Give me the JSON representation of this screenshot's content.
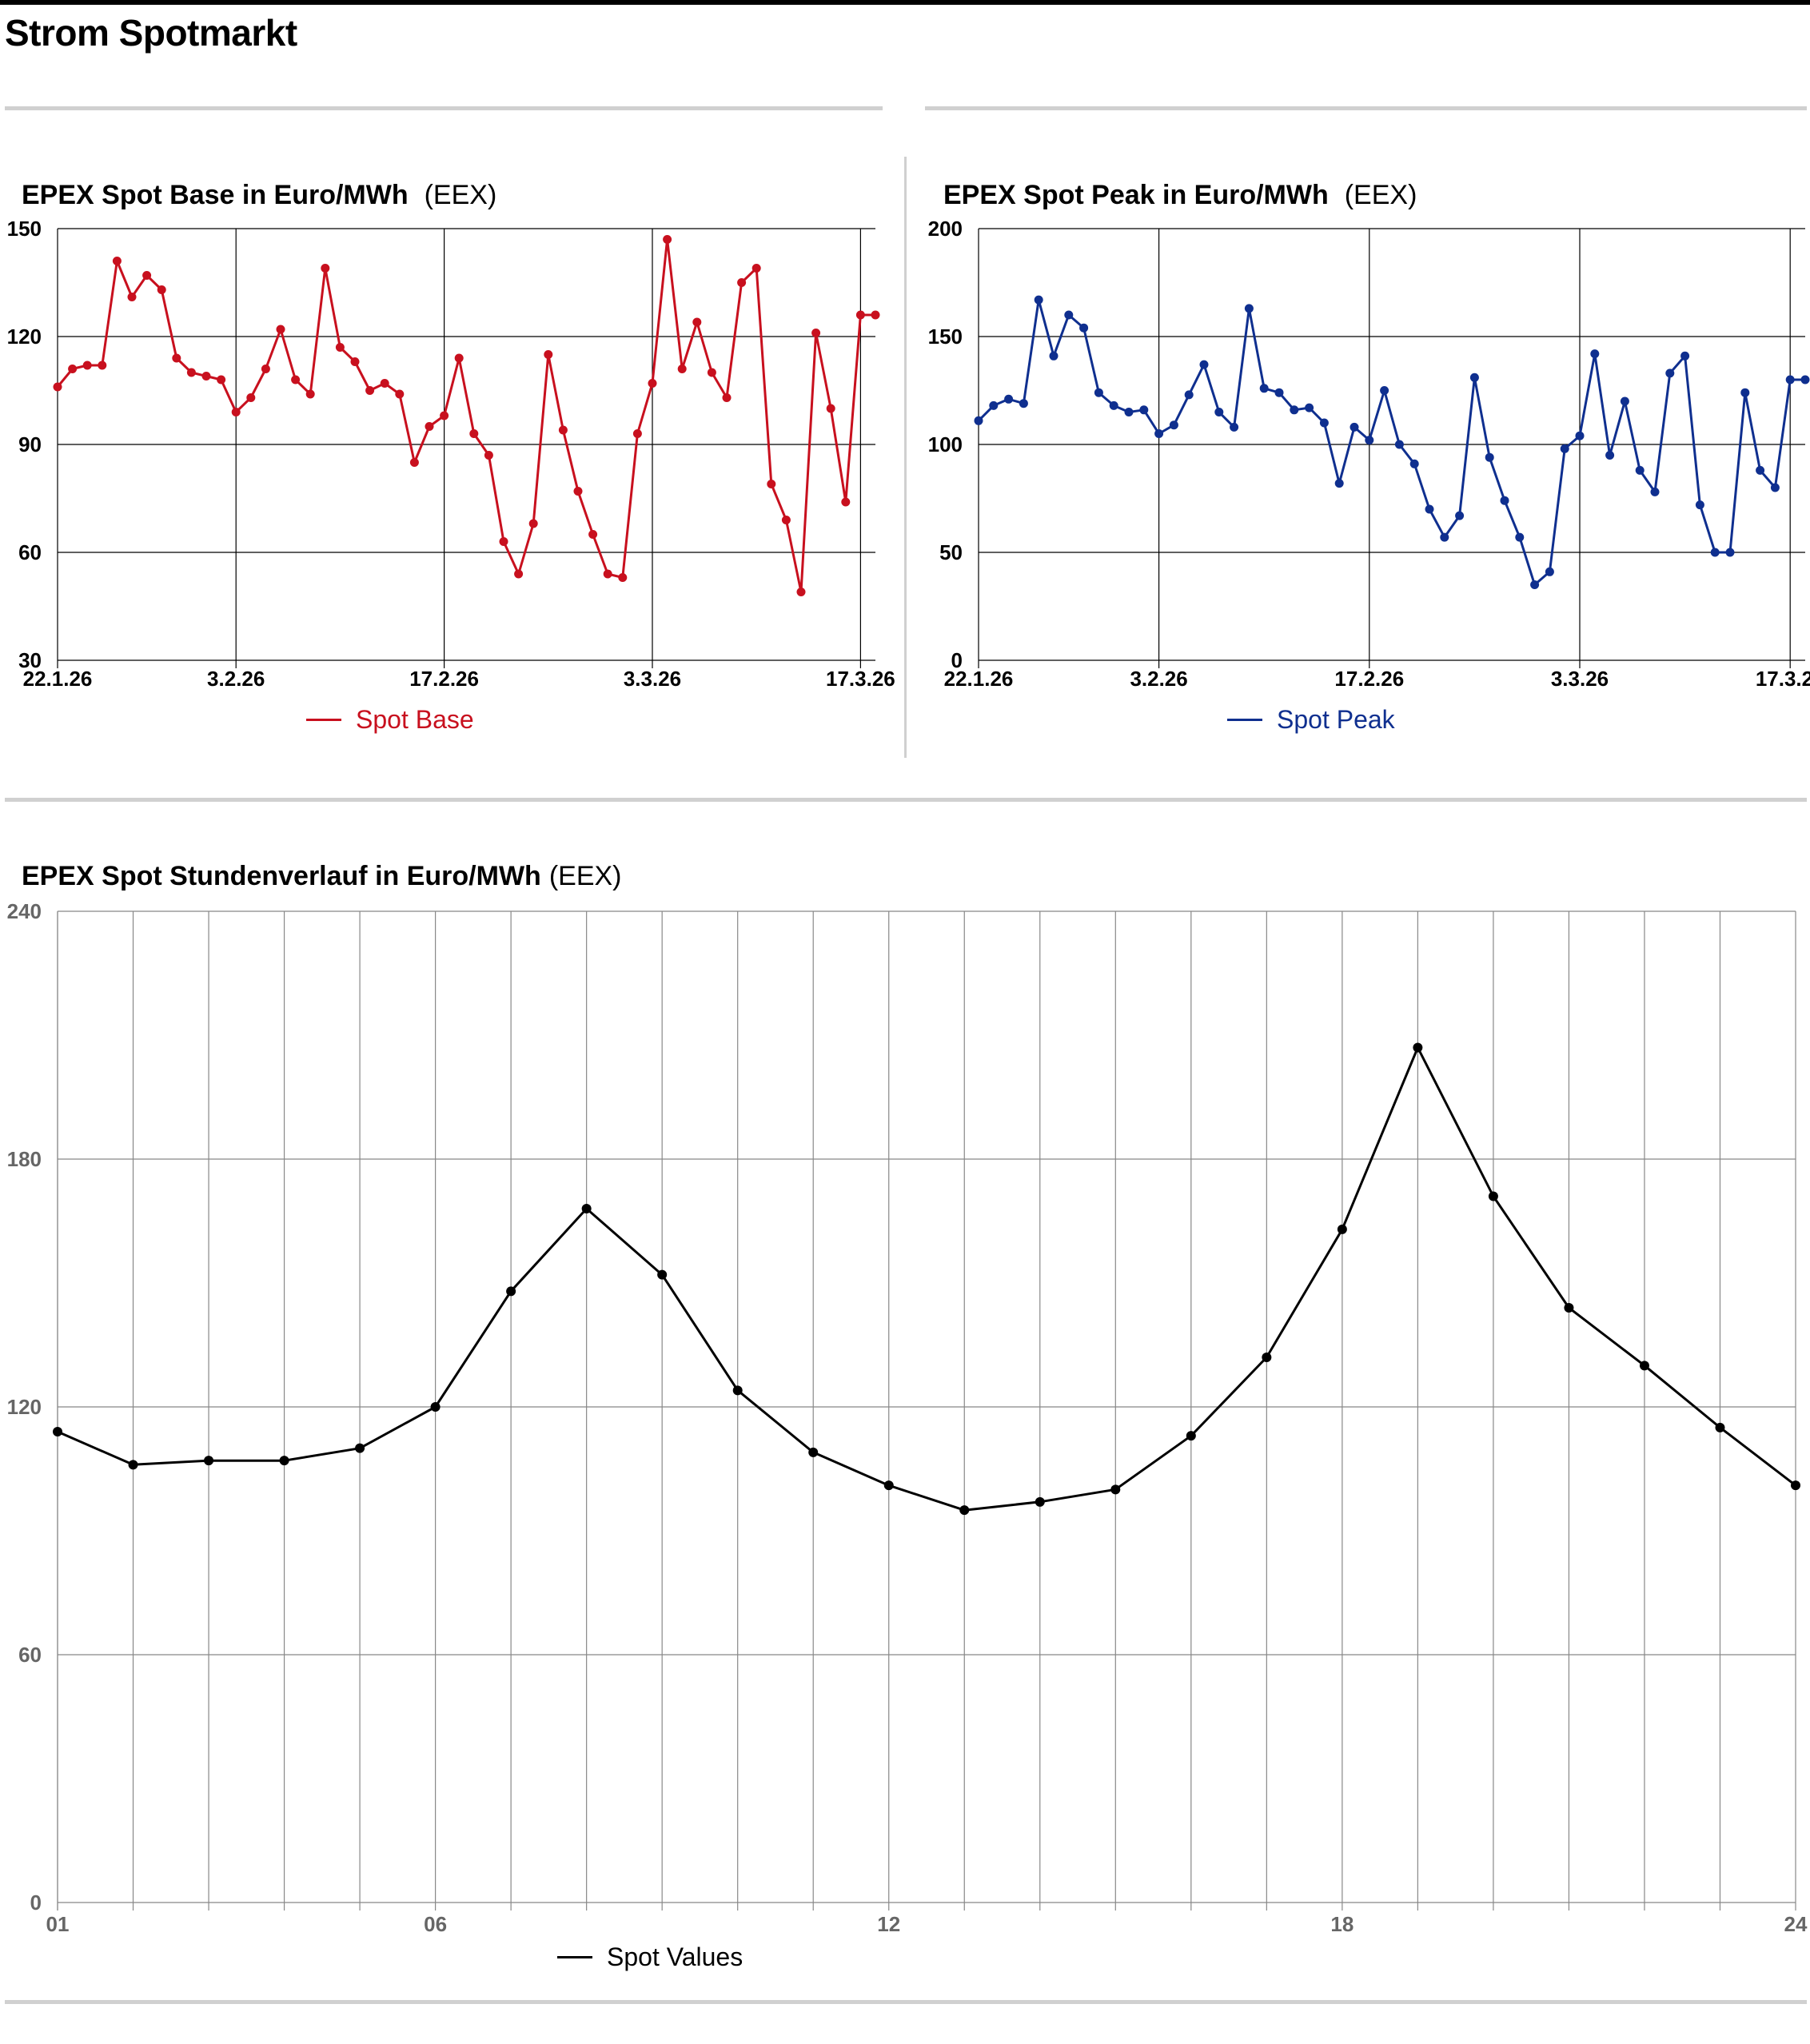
{
  "page": {
    "title": "Strom Spotmarkt"
  },
  "charts": {
    "base": {
      "title": "EPEX Spot Base in Euro/MWh",
      "source": "(EEX)",
      "legend": "Spot Base",
      "color": "#c8101e"
    },
    "peak": {
      "title": "EPEX Spot Peak in Euro/MWh",
      "source": "(EEX)",
      "legend": "Spot Peak",
      "color": "#0f2f8f"
    },
    "hourly": {
      "title": "EPEX Spot Stundenverlauf in Euro/MWh",
      "source": "(EEX)",
      "legend": "Spot Values",
      "color": "#000000"
    }
  },
  "chart_data": [
    {
      "id": "base",
      "type": "line",
      "title": "EPEX Spot Base in Euro/MWh",
      "ylim": [
        30,
        150
      ],
      "yticks": [
        30,
        60,
        90,
        120,
        150
      ],
      "xlim": [
        0,
        55
      ],
      "xticks": [
        {
          "x": 0,
          "label": "22.1.26"
        },
        {
          "x": 12,
          "label": "3.2.26"
        },
        {
          "x": 26,
          "label": "17.2.26"
        },
        {
          "x": 40,
          "label": "3.3.26"
        },
        {
          "x": 54,
          "label": "17.3.26"
        }
      ],
      "grid": true,
      "legend_position": "bottom-center",
      "series": [
        {
          "name": "Spot Base",
          "x": [
            0,
            1,
            2,
            3,
            4,
            5,
            6,
            7,
            8,
            9,
            10,
            11,
            12,
            13,
            14,
            15,
            16,
            17,
            18,
            19,
            20,
            21,
            22,
            23,
            24,
            25,
            26,
            27,
            28,
            29,
            30,
            31,
            32,
            33,
            34,
            35,
            36,
            37,
            38,
            39,
            40,
            41,
            42,
            43,
            44,
            45,
            46,
            47,
            48,
            49,
            50,
            51,
            52,
            53,
            54,
            55
          ],
          "values": [
            106,
            111,
            112,
            112,
            141,
            131,
            137,
            133,
            114,
            110,
            109,
            108,
            99,
            103,
            111,
            122,
            108,
            104,
            139,
            117,
            113,
            105,
            107,
            104,
            85,
            95,
            98,
            114,
            93,
            87,
            63,
            54,
            68,
            115,
            94,
            77,
            65,
            54,
            53,
            93,
            107,
            147,
            111,
            124,
            110,
            103,
            135,
            139,
            79,
            69,
            49,
            121,
            100,
            74,
            126,
            126
          ]
        }
      ]
    },
    {
      "id": "peak",
      "type": "line",
      "title": "EPEX Spot Peak in Euro/MWh",
      "ylim": [
        0,
        200
      ],
      "yticks": [
        0,
        50,
        100,
        150,
        200
      ],
      "xlim": [
        0,
        55
      ],
      "xticks": [
        {
          "x": 0,
          "label": "22.1.26"
        },
        {
          "x": 12,
          "label": "3.2.26"
        },
        {
          "x": 26,
          "label": "17.2.26"
        },
        {
          "x": 40,
          "label": "3.3.26"
        },
        {
          "x": 54,
          "label": "17.3.26"
        }
      ],
      "grid": true,
      "legend_position": "bottom-center",
      "series": [
        {
          "name": "Spot Peak",
          "x": [
            0,
            1,
            2,
            3,
            4,
            5,
            6,
            7,
            8,
            9,
            10,
            11,
            12,
            13,
            14,
            15,
            16,
            17,
            18,
            19,
            20,
            21,
            22,
            23,
            24,
            25,
            26,
            27,
            28,
            29,
            30,
            31,
            32,
            33,
            34,
            35,
            36,
            37,
            38,
            39,
            40,
            41,
            42,
            43,
            44,
            45,
            46,
            47,
            48,
            49,
            50,
            51,
            52,
            53,
            54,
            55
          ],
          "values": [
            111,
            118,
            121,
            119,
            167,
            141,
            160,
            154,
            124,
            118,
            115,
            116,
            105,
            109,
            123,
            137,
            115,
            108,
            163,
            126,
            124,
            116,
            117,
            110,
            82,
            108,
            102,
            125,
            100,
            91,
            70,
            57,
            67,
            131,
            94,
            74,
            57,
            35,
            41,
            98,
            104,
            142,
            95,
            120,
            88,
            78,
            133,
            141,
            72,
            50,
            50,
            124,
            88,
            80,
            130,
            130
          ]
        }
      ]
    },
    {
      "id": "hourly",
      "type": "line",
      "title": "EPEX Spot Stundenverlauf in Euro/MWh",
      "ylim": [
        0,
        240
      ],
      "yticks": [
        0,
        60,
        120,
        180,
        240
      ],
      "xlim": [
        1,
        24
      ],
      "xticks": [
        {
          "x": 1,
          "label": "01"
        },
        {
          "x": 6,
          "label": "06"
        },
        {
          "x": 12,
          "label": "12"
        },
        {
          "x": 18,
          "label": "18"
        },
        {
          "x": 24,
          "label": "24"
        }
      ],
      "grid": true,
      "legend_position": "bottom-center",
      "series": [
        {
          "name": "Spot Values",
          "x": [
            1,
            2,
            3,
            4,
            5,
            6,
            7,
            8,
            9,
            10,
            11,
            12,
            13,
            14,
            15,
            16,
            17,
            18,
            19,
            20,
            21,
            22,
            23,
            24
          ],
          "values": [
            114,
            106,
            107,
            107,
            110,
            120,
            148,
            168,
            152,
            124,
            109,
            101,
            95,
            97,
            100,
            113,
            132,
            163,
            207,
            171,
            144,
            130,
            115,
            101
          ]
        }
      ]
    }
  ]
}
